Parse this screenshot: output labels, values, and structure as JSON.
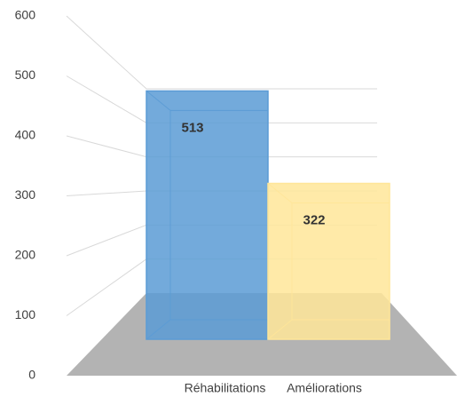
{
  "chart_data": {
    "type": "bar3d",
    "categories": [
      "Réhabilitations",
      "Améliorations"
    ],
    "values": [
      513,
      322
    ],
    "colors": [
      "#5b9bd5",
      "#ffe699"
    ],
    "ylim": [
      0,
      600
    ],
    "yticks": [
      0,
      100,
      200,
      300,
      400,
      500,
      600
    ],
    "grid": true
  }
}
